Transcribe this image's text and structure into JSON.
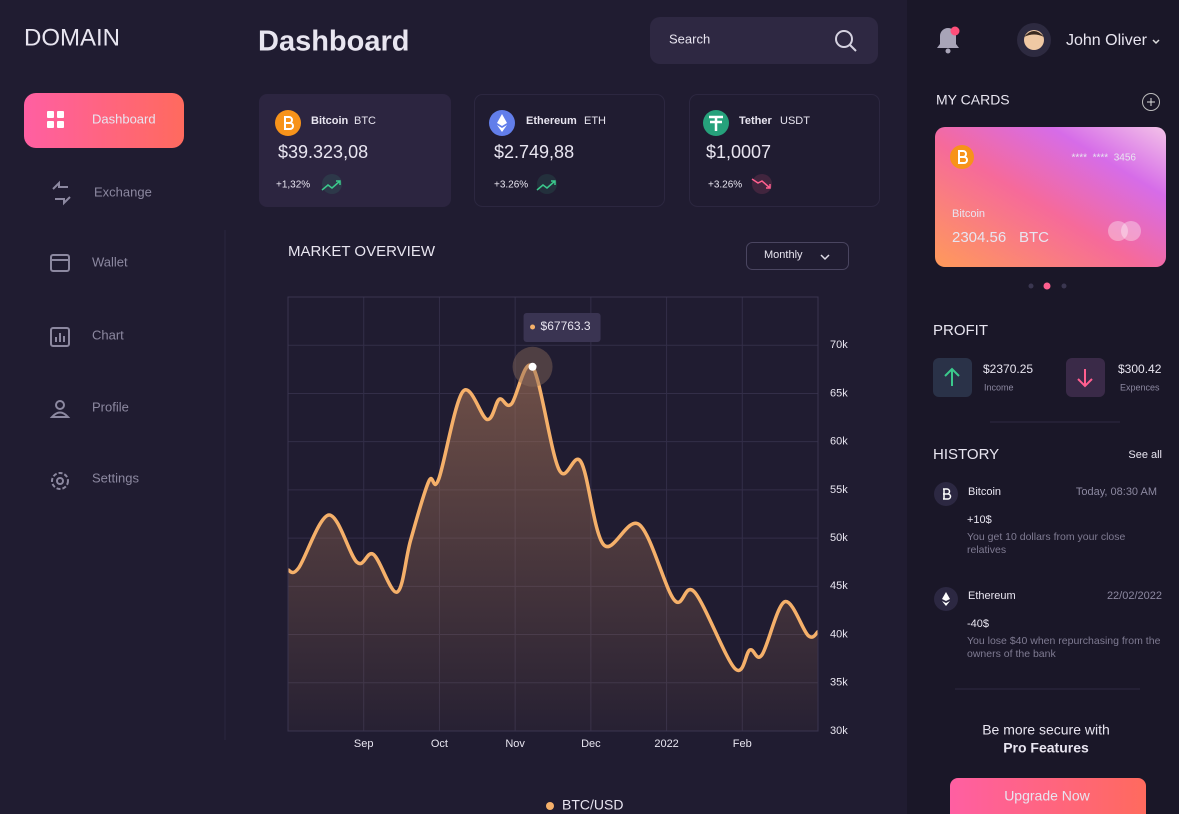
{
  "logo": "DOMAIN",
  "nav": [
    "Dashboard",
    "Exchange",
    "Wallet",
    "Chart",
    "Profile",
    "Settings"
  ],
  "header": {
    "title": "Dashboard",
    "search": "Search",
    "user": "John Oliver"
  },
  "coins": [
    {
      "name": "Bitcoin",
      "symbol": "BTC",
      "price": "$39.323,08",
      "change": "+1,32%"
    },
    {
      "name": "Ethereum",
      "symbol": "ETH",
      "price": "$2.749,88",
      "change": "+3.26%"
    },
    {
      "name": "Tether",
      "symbol": "USDT",
      "price": "$1,0007",
      "change": "+3.26%"
    }
  ],
  "chart_data": {
    "type": "line",
    "title": "MARKET OVERVIEW",
    "period": "Monthly",
    "x": [
      0,
      0.14,
      0.54,
      0.91,
      1.13,
      1.44,
      1.62,
      1.86,
      1.99,
      2.31,
      2.63,
      2.79,
      2.95,
      3.23,
      3.58,
      3.87,
      4.17,
      4.64,
      5.1,
      5.37,
      5.9,
      6.1,
      6.26,
      6.56,
      6.87,
      7
    ],
    "series": [
      {
        "name": "BTC/USD",
        "color": "#f5b06a",
        "values": [
          46700,
          46900,
          52400,
          47500,
          48300,
          44400,
          49800,
          55900,
          56100,
          65200,
          62300,
          64400,
          63900,
          67763.3,
          57100,
          57900,
          49300,
          51400,
          43600,
          44400,
          36500,
          38400,
          37900,
          43400,
          39900,
          40300
        ]
      }
    ],
    "xlim": [
      0,
      7
    ],
    "xticks": [
      {
        "value": 1,
        "label": "Sep"
      },
      {
        "value": 2,
        "label": "Oct"
      },
      {
        "value": 3,
        "label": "Nov"
      },
      {
        "value": 4,
        "label": "Dec"
      },
      {
        "value": 5,
        "label": "2022"
      },
      {
        "value": 6,
        "label": "Feb"
      }
    ],
    "ylim": [
      30000,
      75000
    ],
    "yticks": [
      {
        "value": 30000,
        "label": "30k"
      },
      {
        "value": 35000,
        "label": "35k"
      },
      {
        "value": 40000,
        "label": "40k"
      },
      {
        "value": 45000,
        "label": "45k"
      },
      {
        "value": 50000,
        "label": "50k"
      },
      {
        "value": 55000,
        "label": "55k"
      },
      {
        "value": 60000,
        "label": "60k"
      },
      {
        "value": 65000,
        "label": "65k"
      },
      {
        "value": 70000,
        "label": "70k"
      }
    ],
    "grid": true,
    "tooltip": {
      "x": 3.23,
      "value": 67763.3,
      "label": "$67763.3"
    }
  },
  "my_cards": {
    "title": "MY CARDS",
    "number": "****  ****  3456",
    "name": "Bitcoin",
    "balance": "2304.56",
    "currency": "BTC"
  },
  "profit": {
    "title": "PROFIT",
    "items": [
      {
        "amount": "$2370.25",
        "label": "Income"
      },
      {
        "amount": "$300.42",
        "label": "Expences"
      }
    ]
  },
  "history": {
    "title": "HISTORY",
    "see_all": "See all",
    "items": [
      {
        "coin": "Bitcoin",
        "time": "Today, 08:30 AM",
        "amount": "+10$",
        "text": "You get 10 dollars from your close relatives"
      },
      {
        "coin": "Ethereum",
        "time": "22/02/2022",
        "amount": "-40$",
        "text": "You lose $40 when repurchasing from the owners of the bank"
      }
    ]
  },
  "promo": {
    "line1": "Be more secure with",
    "line2": "Pro Features",
    "button": "Upgrade Now"
  }
}
